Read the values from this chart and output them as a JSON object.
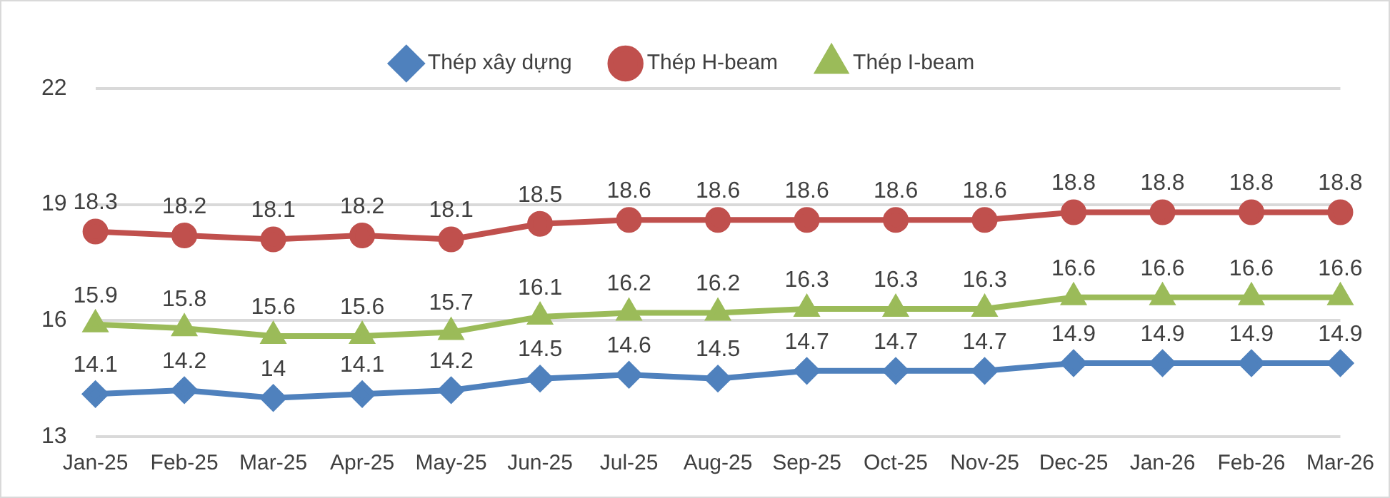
{
  "chart_data": {
    "type": "line",
    "categories": [
      "Jan-25",
      "Feb-25",
      "Mar-25",
      "Apr-25",
      "May-25",
      "Jun-25",
      "Jul-25",
      "Aug-25",
      "Sep-25",
      "Oct-25",
      "Nov-25",
      "Dec-25",
      "Jan-26",
      "Feb-26",
      "Mar-26"
    ],
    "series": [
      {
        "name": "Thép xây dựng",
        "color": "#4f81bd",
        "marker": "diamond",
        "values": [
          14.1,
          14.2,
          14,
          14.1,
          14.2,
          14.5,
          14.6,
          14.5,
          14.7,
          14.7,
          14.7,
          14.9,
          14.9,
          14.9,
          14.9
        ]
      },
      {
        "name": "Thép H-beam",
        "color": "#c0504d",
        "marker": "circle",
        "values": [
          18.3,
          18.2,
          18.1,
          18.2,
          18.1,
          18.5,
          18.6,
          18.6,
          18.6,
          18.6,
          18.6,
          18.8,
          18.8,
          18.8,
          18.8
        ]
      },
      {
        "name": "Thép I-beam",
        "color": "#9bbb59",
        "marker": "triangle",
        "values": [
          15.9,
          15.8,
          15.6,
          15.6,
          15.7,
          16.1,
          16.2,
          16.2,
          16.3,
          16.3,
          16.3,
          16.6,
          16.6,
          16.6,
          16.6
        ]
      }
    ],
    "ylim": [
      13,
      22
    ],
    "yticks": [
      13,
      16,
      19,
      22
    ],
    "grid": "y",
    "legend": "top",
    "data_labels": true,
    "line_style": "solid"
  }
}
